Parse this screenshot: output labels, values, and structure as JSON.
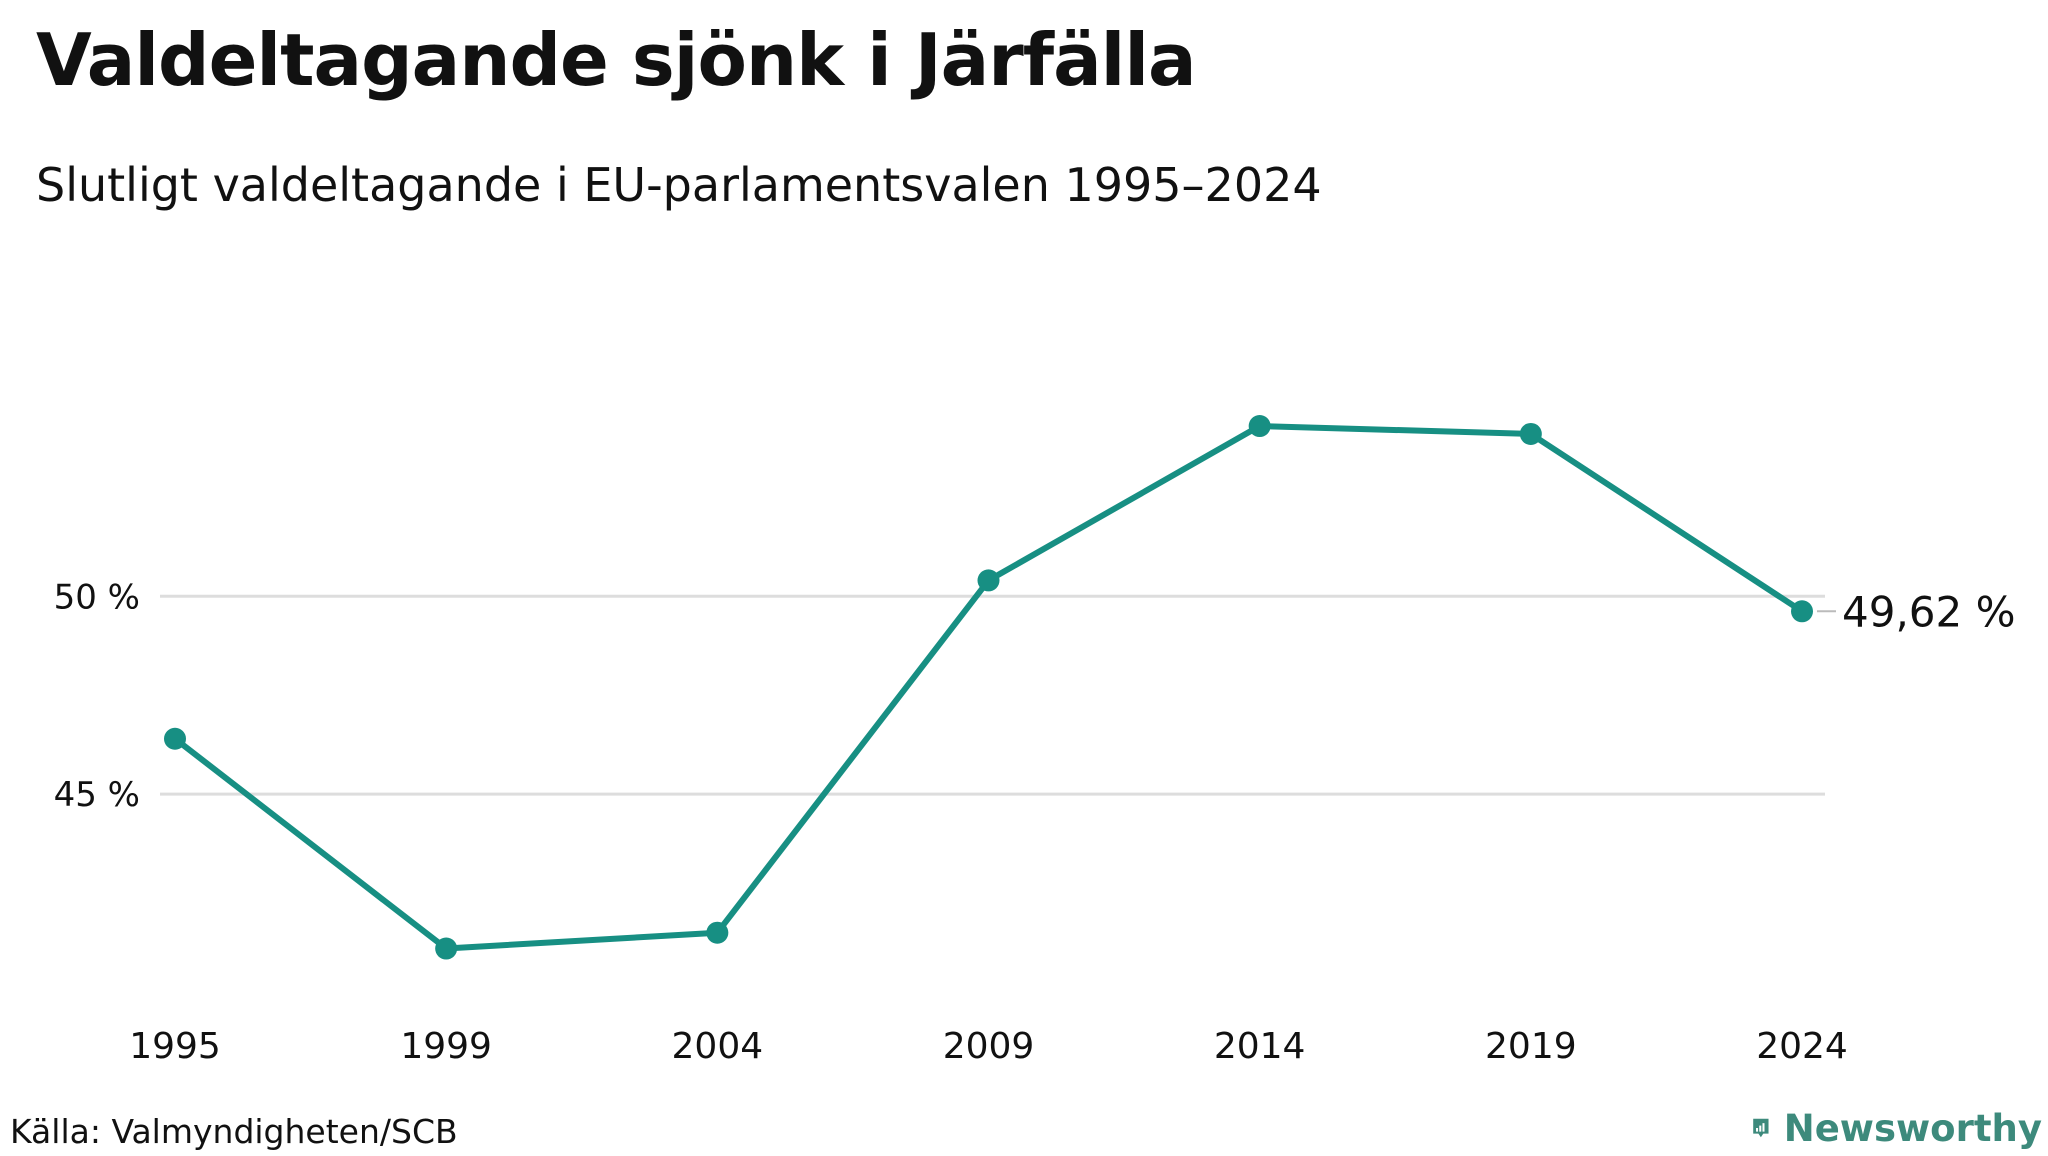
{
  "title": "Valdeltagande sjönk i Järfälla",
  "subtitle": "Slutligt valdeltagande i EU-parlamentsvalen 1995–2024",
  "source": "Källa: Valmyndigheten/SCB",
  "brand": {
    "name": "Newsworthy",
    "icon": "bar-chart-speech-bubble-icon",
    "color": "#3d8a7c"
  },
  "colors": {
    "line": "#178f83",
    "grid": "#dddddd",
    "text": "#111111"
  },
  "chart_data": {
    "type": "line",
    "title": "Valdeltagande sjönk i Järfälla",
    "subtitle": "Slutligt valdeltagande i EU-parlamentsvalen 1995–2024",
    "xlabel": "",
    "ylabel": "",
    "x": [
      "1995",
      "1999",
      "2004",
      "2009",
      "2014",
      "2019",
      "2024"
    ],
    "series": [
      {
        "values": [
          46.4,
          41.1,
          41.5,
          50.4,
          54.3,
          54.1,
          49.62
        ]
      }
    ],
    "yticks": [
      {
        "value": 45,
        "label": "45 %"
      },
      {
        "value": 50,
        "label": "50 %"
      }
    ],
    "ylim": [
      39.8,
      59.0
    ],
    "grid": true,
    "last_value_label": "49,62 %"
  }
}
